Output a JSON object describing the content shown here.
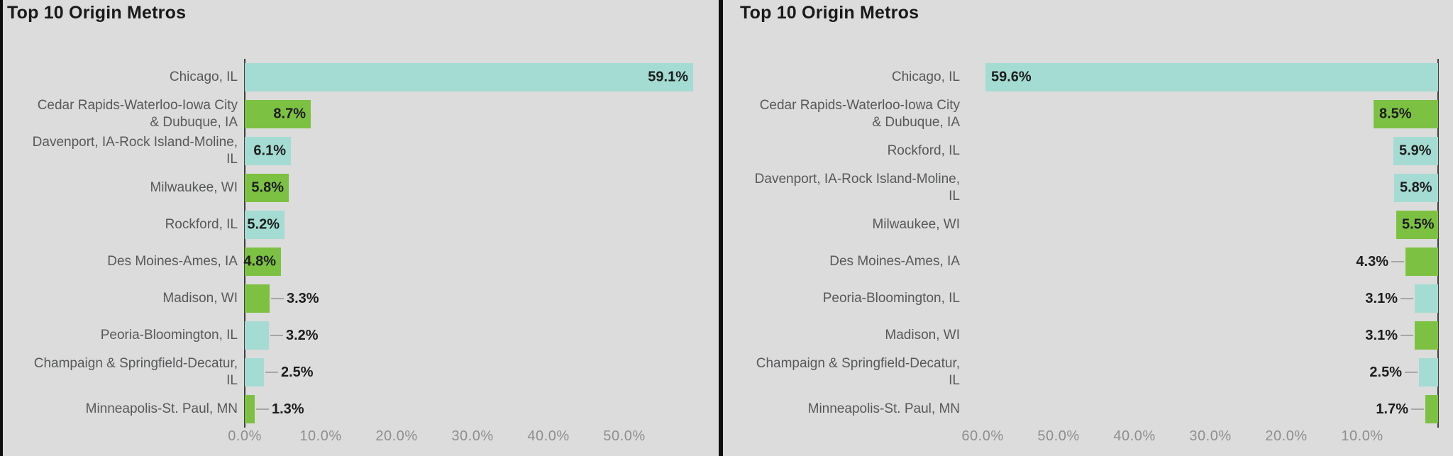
{
  "colors": {
    "background": "#dcdcdc",
    "teal_bar": "#a4dcd3",
    "green_bar": "#7dc142",
    "divider": "#0f0f0f",
    "axis_line": "#3f3f3f",
    "category_text": "#57585a",
    "value_text": "#1d1d1d",
    "tick_text": "#8d8f8d",
    "leader_line": "#a6a6a6",
    "title_text": "#191919"
  },
  "chart_data": [
    {
      "type": "bar",
      "orientation": "horizontal",
      "title": "Top 10 Origin Metros",
      "axis_direction": "ltr",
      "xlim": [
        0,
        60
      ],
      "axis_ticks": [
        "0.0%",
        "10.0%",
        "20.0%",
        "30.0%",
        "40.0%",
        "50.0%"
      ],
      "categories": [
        "Chicago, IL",
        "Cedar Rapids-Waterloo-Iowa City & Dubuque, IA",
        "Davenport, IA-Rock Island-Moline, IL",
        "Milwaukee, WI",
        "Rockford, IL",
        "Des Moines-Ames, IA",
        "Madison, WI",
        "Peoria-Bloomington, IL",
        "Champaign & Springfield-Decatur, IL",
        "Minneapolis-St. Paul, MN"
      ],
      "category_lines": [
        [
          "Chicago, IL"
        ],
        [
          "Cedar Rapids-Waterloo-Iowa City",
          "& Dubuque, IA"
        ],
        [
          "Davenport, IA-Rock Island-Moline,",
          "IL"
        ],
        [
          "Milwaukee, WI"
        ],
        [
          "Rockford, IL"
        ],
        [
          "Des Moines-Ames, IA"
        ],
        [
          "Madison, WI"
        ],
        [
          "Peoria-Bloomington, IL"
        ],
        [
          "Champaign & Springfield-Decatur,",
          "IL"
        ],
        [
          "Minneapolis-St. Paul, MN"
        ]
      ],
      "values": [
        59.1,
        8.7,
        6.1,
        5.8,
        5.2,
        4.8,
        3.3,
        3.2,
        2.5,
        1.3
      ],
      "value_labels": [
        "59.1%",
        "8.7%",
        "6.1%",
        "5.8%",
        "5.2%",
        "4.8%",
        "3.3%",
        "3.2%",
        "2.5%",
        "1.3%"
      ],
      "bar_colors": [
        "teal",
        "green",
        "teal",
        "green",
        "teal",
        "green",
        "green",
        "teal",
        "teal",
        "green"
      ],
      "value_label_placement": [
        "inside",
        "inside",
        "inside",
        "inside",
        "inside",
        "inside",
        "outside",
        "outside",
        "outside",
        "outside"
      ]
    },
    {
      "type": "bar",
      "orientation": "horizontal",
      "title": "Top 10 Origin Metros",
      "axis_direction": "rtl",
      "xlim": [
        60,
        0
      ],
      "axis_ticks": [
        "60.0%",
        "50.0%",
        "40.0%",
        "30.0%",
        "20.0%",
        "10.0%"
      ],
      "categories": [
        "Chicago, IL",
        "Cedar Rapids-Waterloo-Iowa City & Dubuque, IA",
        "Rockford, IL",
        "Davenport, IA-Rock Island-Moline, IL",
        "Milwaukee, WI",
        "Des Moines-Ames, IA",
        "Peoria-Bloomington, IL",
        "Madison, WI",
        "Champaign & Springfield-Decatur, IL",
        "Minneapolis-St. Paul, MN"
      ],
      "category_lines": [
        [
          "Chicago, IL"
        ],
        [
          "Cedar Rapids-Waterloo-Iowa City",
          "& Dubuque, IA"
        ],
        [
          "Rockford, IL"
        ],
        [
          "Davenport, IA-Rock Island-Moline,",
          "IL"
        ],
        [
          "Milwaukee, WI"
        ],
        [
          "Des Moines-Ames, IA"
        ],
        [
          "Peoria-Bloomington, IL"
        ],
        [
          "Madison, WI"
        ],
        [
          "Champaign & Springfield-Decatur,",
          "IL"
        ],
        [
          "Minneapolis-St. Paul, MN"
        ]
      ],
      "values": [
        59.6,
        8.5,
        5.9,
        5.8,
        5.5,
        4.3,
        3.1,
        3.1,
        2.5,
        1.7
      ],
      "value_labels": [
        "59.6%",
        "8.5%",
        "5.9%",
        "5.8%",
        "5.5%",
        "4.3%",
        "3.1%",
        "3.1%",
        "2.5%",
        "1.7%"
      ],
      "bar_colors": [
        "teal",
        "green",
        "teal",
        "teal",
        "green",
        "green",
        "teal",
        "green",
        "teal",
        "green"
      ],
      "value_label_placement": [
        "inside",
        "inside",
        "inside",
        "inside",
        "inside",
        "outside",
        "outside",
        "outside",
        "outside",
        "outside"
      ]
    }
  ]
}
